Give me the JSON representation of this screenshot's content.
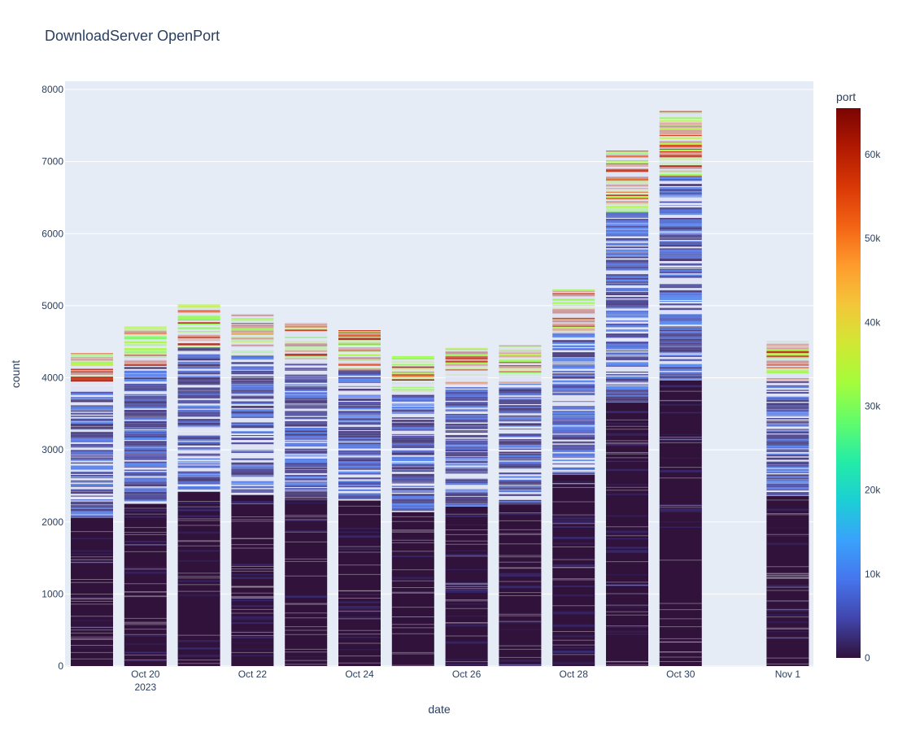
{
  "chart_data": {
    "type": "bar",
    "title": "DownloadServer OpenPort",
    "xlabel": "date",
    "ylabel": "count",
    "ylim": [
      0,
      8050
    ],
    "y_ticks": [
      0,
      1000,
      2000,
      3000,
      4000,
      5000,
      6000,
      7000,
      8000
    ],
    "x_ticks": [
      {
        "label": "Oct 20",
        "sublabel": "2023",
        "date": "2023-10-20"
      },
      {
        "label": "Oct 22",
        "sublabel": "",
        "date": "2023-10-22"
      },
      {
        "label": "Oct 24",
        "sublabel": "",
        "date": "2023-10-24"
      },
      {
        "label": "Oct 26",
        "sublabel": "",
        "date": "2023-10-26"
      },
      {
        "label": "Oct 28",
        "sublabel": "",
        "date": "2023-10-28"
      },
      {
        "label": "Oct 30",
        "sublabel": "",
        "date": "2023-10-30"
      },
      {
        "label": "Nov 1",
        "sublabel": "",
        "date": "2023-11-01"
      }
    ],
    "categories": [
      "2023-10-19",
      "2023-10-20",
      "2023-10-21",
      "2023-10-22",
      "2023-10-23",
      "2023-10-24",
      "2023-10-25",
      "2023-10-26",
      "2023-10-27",
      "2023-10-28",
      "2023-10-29",
      "2023-10-30",
      "2023-10-31",
      "2023-11-01"
    ],
    "values": [
      4340,
      4710,
      5020,
      4890,
      4770,
      4660,
      4300,
      4420,
      4450,
      5230,
      7150,
      7700,
      0,
      4510
    ],
    "colorbar": {
      "title": "port",
      "range": [
        0,
        65535
      ],
      "tick_values": [
        0,
        10000,
        20000,
        30000,
        40000,
        50000,
        60000
      ],
      "tick_labels": [
        "0",
        "10k",
        "20k",
        "30k",
        "40k",
        "50k",
        "60k"
      ],
      "colorscale": [
        "#30123b",
        "#4145ab",
        "#4675ed",
        "#39a2fc",
        "#1bcfd4",
        "#24eca6",
        "#61fc6c",
        "#a4fc3b",
        "#d1e834",
        "#f3c63a",
        "#fe9b2d",
        "#f36315",
        "#d93806",
        "#b11901",
        "#7a0402"
      ]
    }
  }
}
